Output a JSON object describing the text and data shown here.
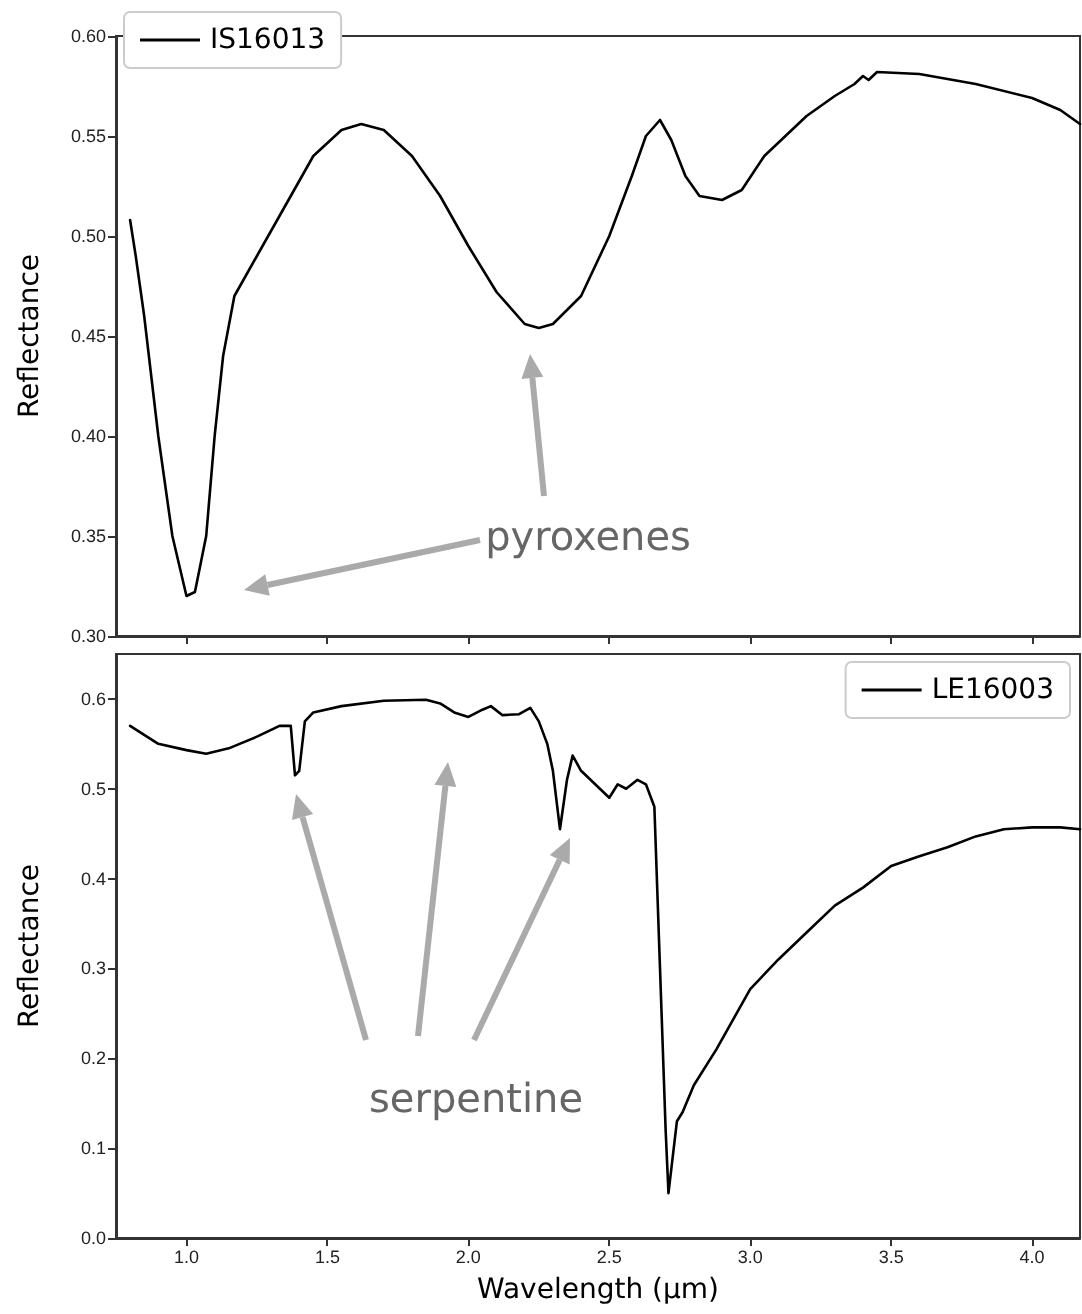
{
  "chart_data": [
    {
      "type": "line",
      "ylabel": "Reflectance",
      "xlim": [
        0.75,
        4.17
      ],
      "ylim": [
        0.3,
        0.6
      ],
      "xticks": [
        1,
        1.5,
        2,
        2.5,
        3,
        3.5,
        4
      ],
      "yticks": [
        {
          "value": 0.3,
          "label": "0.30"
        },
        {
          "value": 0.35,
          "label": "0.35"
        },
        {
          "value": 0.4,
          "label": "0.40"
        },
        {
          "value": 0.45,
          "label": "0.45"
        },
        {
          "value": 0.5,
          "label": "0.50"
        },
        {
          "value": 0.55,
          "label": "0.55"
        },
        {
          "value": 0.6,
          "label": "0.60"
        }
      ],
      "tick_labels": "y",
      "legend": "top left",
      "grid": false,
      "marker": "none",
      "line_style": "solid",
      "annotations": [
        "pyroxenes"
      ],
      "x": [
        0.8,
        0.82,
        0.85,
        0.9,
        0.95,
        1.0,
        1.03,
        1.07,
        1.1,
        1.13,
        1.17,
        1.25,
        1.35,
        1.45,
        1.55,
        1.62,
        1.7,
        1.8,
        1.9,
        2.0,
        2.1,
        2.2,
        2.25,
        2.3,
        2.4,
        2.5,
        2.58,
        2.63,
        2.68,
        2.72,
        2.77,
        2.82,
        2.9,
        2.97,
        3.05,
        3.2,
        3.3,
        3.37,
        3.4,
        3.42,
        3.45,
        3.6,
        3.8,
        4.0,
        4.1,
        4.17
      ],
      "series": [
        {
          "name": "IS16013",
          "color": "#000000",
          "values": [
            0.508,
            0.49,
            0.46,
            0.4,
            0.35,
            0.32,
            0.322,
            0.35,
            0.4,
            0.44,
            0.47,
            0.49,
            0.515,
            0.54,
            0.553,
            0.556,
            0.553,
            0.54,
            0.52,
            0.495,
            0.472,
            0.456,
            0.454,
            0.456,
            0.47,
            0.5,
            0.53,
            0.55,
            0.558,
            0.548,
            0.53,
            0.52,
            0.518,
            0.523,
            0.54,
            0.56,
            0.57,
            0.576,
            0.58,
            0.578,
            0.582,
            0.581,
            0.576,
            0.569,
            0.563,
            0.556
          ]
        }
      ]
    },
    {
      "type": "line",
      "xlabel": "Wavelength (μm)",
      "ylabel": "Reflectance",
      "xlim": [
        0.75,
        4.17
      ],
      "ylim": [
        0,
        0.65
      ],
      "xticks": [
        {
          "value": 1,
          "label": "1.0"
        },
        {
          "value": 1.5,
          "label": "1.5"
        },
        {
          "value": 2,
          "label": "2.0"
        },
        {
          "value": 2.5,
          "label": "2.5"
        },
        {
          "value": 3,
          "label": "3.0"
        },
        {
          "value": 3.5,
          "label": "3.5"
        },
        {
          "value": 4,
          "label": "4.0"
        }
      ],
      "yticks": [
        {
          "value": 0,
          "label": "0.0"
        },
        {
          "value": 0.1,
          "label": "0.1"
        },
        {
          "value": 0.2,
          "label": "0.2"
        },
        {
          "value": 0.3,
          "label": "0.3"
        },
        {
          "value": 0.4,
          "label": "0.4"
        },
        {
          "value": 0.5,
          "label": "0.5"
        },
        {
          "value": 0.6,
          "label": "0.6"
        }
      ],
      "legend": "top right",
      "grid": false,
      "marker": "none",
      "line_style": "solid",
      "annotations": [
        "serpentine"
      ],
      "x": [
        0.8,
        0.85,
        0.9,
        1.0,
        1.07,
        1.15,
        1.25,
        1.33,
        1.37,
        1.385,
        1.4,
        1.42,
        1.45,
        1.55,
        1.7,
        1.85,
        1.9,
        1.95,
        2.0,
        2.05,
        2.08,
        2.12,
        2.18,
        2.22,
        2.25,
        2.28,
        2.3,
        2.325,
        2.35,
        2.37,
        2.4,
        2.45,
        2.5,
        2.53,
        2.56,
        2.6,
        2.63,
        2.66,
        2.68,
        2.7,
        2.71,
        2.74,
        2.76,
        2.8,
        2.88,
        3.0,
        3.1,
        3.2,
        3.3,
        3.4,
        3.5,
        3.6,
        3.7,
        3.8,
        3.9,
        4.0,
        4.1,
        4.17
      ],
      "series": [
        {
          "name": "LE16003",
          "color": "#000000",
          "values": [
            0.57,
            0.56,
            0.55,
            0.543,
            0.539,
            0.545,
            0.558,
            0.57,
            0.57,
            0.515,
            0.52,
            0.575,
            0.585,
            0.592,
            0.598,
            0.599,
            0.595,
            0.585,
            0.58,
            0.588,
            0.592,
            0.582,
            0.583,
            0.59,
            0.575,
            0.55,
            0.52,
            0.455,
            0.51,
            0.537,
            0.52,
            0.505,
            0.49,
            0.505,
            0.5,
            0.51,
            0.505,
            0.48,
            0.3,
            0.12,
            0.05,
            0.13,
            0.14,
            0.17,
            0.21,
            0.277,
            0.31,
            0.34,
            0.37,
            0.39,
            0.414,
            0.425,
            0.435,
            0.447,
            0.455,
            0.457,
            0.457,
            0.455
          ]
        }
      ]
    }
  ]
}
